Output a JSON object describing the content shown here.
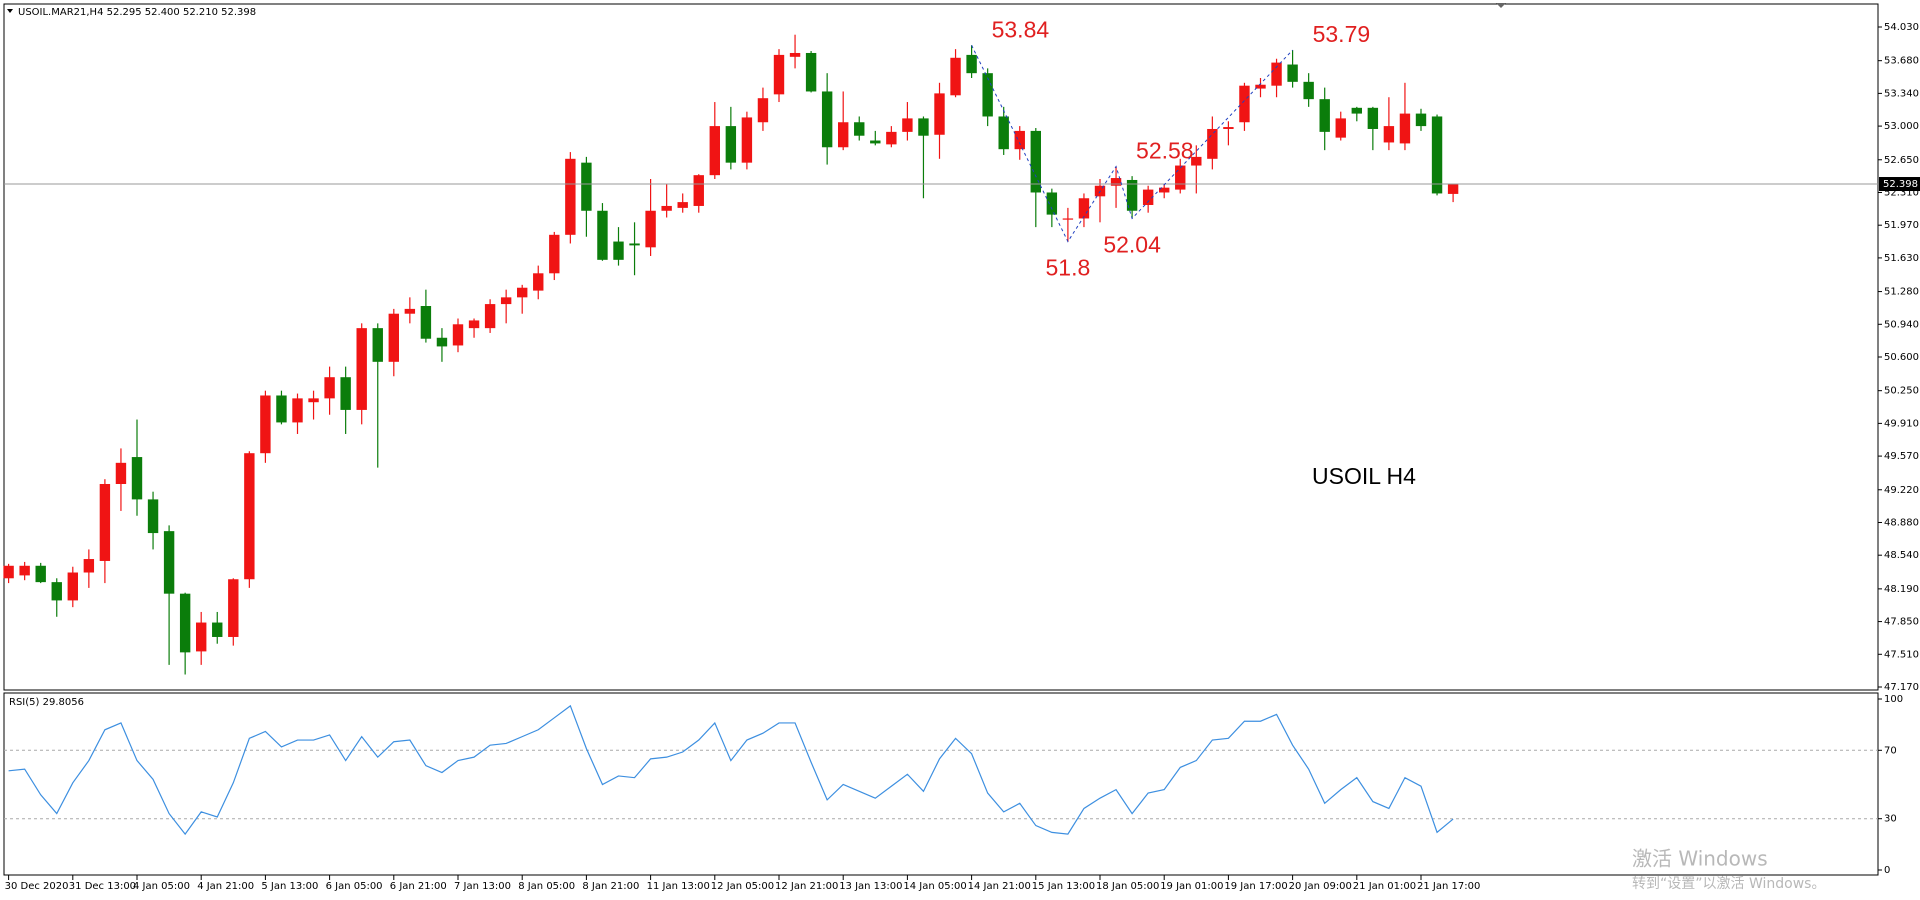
{
  "chart_data": [
    {
      "type": "candlestick",
      "title": "USOIL.MAR21,H4  52.295 52.400 52.210 52.398",
      "categories": [
        "30 Dec 2020",
        null,
        null,
        null,
        "31 Dec 13:00",
        null,
        null,
        null,
        "4 Jan 05:00",
        null,
        null,
        null,
        "4 Jan 21:00",
        null,
        null,
        null,
        "5 Jan 13:00",
        null,
        null,
        null,
        "6 Jan 05:00",
        null,
        null,
        null,
        "6 Jan 21:00",
        null,
        null,
        null,
        "7 Jan 13:00",
        null,
        null,
        null,
        "8 Jan 05:00",
        null,
        null,
        null,
        "8 Jan 21:00",
        null,
        null,
        null,
        "11 Jan 13:00",
        null,
        null,
        null,
        "12 Jan 05:00",
        null,
        null,
        null,
        "12 Jan 21:00",
        null,
        null,
        null,
        "13 Jan 13:00",
        null,
        null,
        null,
        "14 Jan 05:00",
        null,
        null,
        null,
        "14 Jan 21:00",
        null,
        null,
        null,
        "15 Jan 13:00",
        null,
        null,
        null,
        "18 Jan 05:00",
        null,
        null,
        null,
        "19 Jan 01:00",
        null,
        null,
        null,
        "19 Jan 17:00",
        null,
        null,
        null,
        "20 Jan 09:00",
        null,
        null,
        null,
        "21 Jan 01:00",
        null,
        null,
        null,
        "21 Jan 17:00",
        null,
        null
      ],
      "open": [
        48.3,
        48.33,
        48.43,
        48.26,
        48.07,
        48.36,
        48.48,
        49.28,
        49.56,
        49.12,
        48.79,
        48.14,
        47.54,
        47.84,
        47.69,
        48.29,
        49.6,
        50.2,
        49.92,
        50.13,
        50.17,
        50.39,
        50.05,
        50.9,
        50.55,
        51.05,
        51.13,
        50.8,
        50.72,
        50.9,
        50.9,
        51.15,
        51.22,
        51.29,
        51.47,
        51.87,
        52.62,
        52.12,
        51.8,
        51.78,
        51.74,
        52.12,
        52.15,
        52.17,
        52.49,
        53.0,
        52.62,
        53.04,
        53.33,
        53.72,
        53.76,
        53.36,
        52.78,
        53.04,
        52.85,
        52.81,
        52.94,
        53.08,
        52.91,
        53.32,
        53.74,
        53.55,
        53.1,
        52.76,
        52.95,
        52.31,
        52.03,
        52.04,
        52.27,
        52.38,
        52.44,
        52.18,
        52.31,
        52.34,
        52.59,
        52.66,
        52.97,
        53.04,
        53.39,
        53.42,
        53.64,
        53.46,
        53.28,
        52.88,
        53.19,
        53.19,
        52.83,
        52.82,
        53.13,
        53.1,
        52.295
      ],
      "high": [
        48.45,
        48.47,
        48.46,
        48.3,
        48.42,
        48.6,
        49.33,
        49.65,
        49.95,
        49.2,
        48.85,
        48.15,
        47.95,
        47.95,
        48.3,
        49.62,
        50.25,
        50.25,
        50.22,
        50.25,
        50.5,
        50.5,
        50.95,
        50.95,
        51.1,
        51.22,
        51.3,
        50.9,
        51.0,
        51.0,
        51.2,
        51.3,
        51.35,
        51.55,
        51.9,
        52.73,
        52.68,
        52.2,
        51.95,
        52.0,
        52.45,
        52.4,
        52.3,
        52.5,
        53.25,
        53.2,
        53.15,
        53.4,
        53.8,
        53.95,
        53.78,
        53.55,
        53.36,
        53.1,
        52.95,
        53.0,
        53.25,
        53.1,
        53.45,
        53.8,
        53.84,
        53.6,
        53.2,
        53.0,
        52.98,
        52.35,
        52.15,
        52.3,
        52.45,
        52.58,
        52.48,
        52.38,
        52.4,
        52.66,
        52.8,
        53.1,
        53.05,
        53.45,
        53.5,
        53.7,
        53.79,
        53.55,
        53.4,
        53.15,
        53.2,
        53.2,
        53.3,
        53.45,
        53.18,
        53.12,
        52.4
      ],
      "low": [
        48.25,
        48.28,
        48.25,
        47.9,
        48.0,
        48.2,
        48.25,
        49.0,
        48.95,
        48.6,
        47.4,
        47.3,
        47.4,
        47.62,
        47.6,
        48.2,
        49.5,
        49.9,
        49.8,
        49.95,
        50.0,
        49.8,
        49.9,
        49.45,
        50.4,
        50.95,
        50.75,
        50.55,
        50.65,
        50.8,
        50.85,
        50.95,
        51.05,
        51.2,
        51.4,
        51.78,
        51.85,
        51.6,
        51.55,
        51.45,
        51.65,
        52.05,
        52.1,
        52.1,
        52.45,
        52.55,
        52.55,
        52.95,
        53.25,
        53.6,
        53.35,
        52.6,
        52.75,
        52.85,
        52.8,
        52.78,
        52.85,
        52.25,
        52.66,
        53.3,
        53.5,
        53.0,
        52.7,
        52.65,
        51.95,
        51.95,
        51.8,
        51.95,
        52.0,
        52.15,
        52.04,
        52.1,
        52.25,
        52.3,
        52.3,
        52.55,
        52.8,
        52.95,
        53.3,
        53.3,
        53.4,
        53.2,
        52.75,
        52.85,
        53.05,
        52.75,
        52.75,
        52.75,
        52.95,
        52.28,
        52.21
      ],
      "close": [
        48.43,
        48.43,
        48.26,
        48.07,
        48.36,
        48.5,
        49.28,
        49.5,
        49.12,
        48.77,
        48.14,
        47.53,
        47.84,
        47.69,
        48.29,
        49.6,
        50.2,
        49.92,
        50.17,
        50.17,
        50.39,
        50.05,
        50.9,
        50.55,
        51.05,
        51.1,
        50.79,
        50.71,
        50.94,
        50.98,
        51.15,
        51.22,
        51.32,
        51.47,
        51.87,
        52.66,
        52.12,
        51.61,
        51.61,
        51.76,
        52.12,
        52.17,
        52.21,
        52.49,
        53.0,
        52.62,
        53.09,
        53.29,
        53.74,
        53.76,
        53.36,
        52.78,
        53.04,
        52.9,
        52.82,
        52.94,
        53.08,
        52.9,
        53.34,
        53.71,
        53.55,
        53.1,
        52.76,
        52.95,
        52.31,
        52.08,
        52.04,
        52.25,
        52.38,
        52.46,
        52.12,
        52.34,
        52.36,
        52.59,
        52.68,
        52.97,
        52.99,
        53.42,
        53.43,
        53.66,
        53.46,
        53.28,
        52.94,
        53.08,
        53.13,
        52.97,
        53.0,
        53.13,
        53.0,
        52.3,
        52.398
      ],
      "up_color": "#f01414",
      "down_color": "#0b7d0b",
      "ylim": [
        47.17,
        54.03
      ],
      "yticks": [
        {
          "value": 54.03,
          "label": "54.030"
        },
        {
          "value": 53.68,
          "label": "53.680"
        },
        {
          "value": 53.34,
          "label": "53.340"
        },
        {
          "value": 53.0,
          "label": "53.000"
        },
        {
          "value": 52.65,
          "label": "52.650"
        },
        {
          "value": 52.31,
          "label": "52.310"
        },
        {
          "value": 51.97,
          "label": "51.970"
        },
        {
          "value": 51.63,
          "label": "51.630"
        },
        {
          "value": 51.28,
          "label": "51.280"
        },
        {
          "value": 50.94,
          "label": "50.940"
        },
        {
          "value": 50.6,
          "label": "50.600"
        },
        {
          "value": 50.25,
          "label": "50.250"
        },
        {
          "value": 49.91,
          "label": "49.910"
        },
        {
          "value": 49.57,
          "label": "49.570"
        },
        {
          "value": 49.22,
          "label": "49.220"
        },
        {
          "value": 48.88,
          "label": "48.880"
        },
        {
          "value": 48.54,
          "label": "48.540"
        },
        {
          "value": 48.19,
          "label": "48.190"
        },
        {
          "value": 47.85,
          "label": "47.850"
        },
        {
          "value": 47.51,
          "label": "47.510"
        },
        {
          "value": 47.17,
          "label": "47.170"
        }
      ],
      "annotations": [
        53.84,
        51.8,
        52.58,
        52.04,
        53.79
      ],
      "annotation_color": "#e02020",
      "label": "USOIL H4"
    },
    {
      "type": "line",
      "title": "RSI(5) 29.8056",
      "color": "#3d8fe0",
      "values": [
        58,
        59,
        44,
        33,
        51,
        64,
        82,
        86,
        64,
        53,
        33,
        21,
        34,
        31,
        51,
        77,
        81,
        72,
        76,
        76,
        79,
        64,
        78,
        66,
        75,
        76,
        61,
        57,
        64,
        66,
        73,
        74,
        78,
        82,
        89,
        96,
        71,
        50,
        55,
        54,
        65,
        66,
        69,
        76,
        86,
        64,
        76,
        80,
        86,
        86,
        63,
        41,
        50,
        46,
        42,
        49,
        56,
        46,
        65,
        77,
        68,
        45,
        34,
        39,
        26,
        22,
        21,
        36,
        42,
        47,
        33,
        45,
        47,
        60,
        64,
        76,
        77,
        87,
        87,
        91,
        73,
        59,
        39,
        47,
        54,
        40,
        36,
        54,
        49,
        22,
        29.8056
      ],
      "ylim": [
        0,
        100
      ],
      "yticks": [
        100,
        70,
        30,
        0
      ]
    }
  ],
  "watermark": [
    "激活 Windows",
    "转到“设置”以激活 Windows。"
  ]
}
